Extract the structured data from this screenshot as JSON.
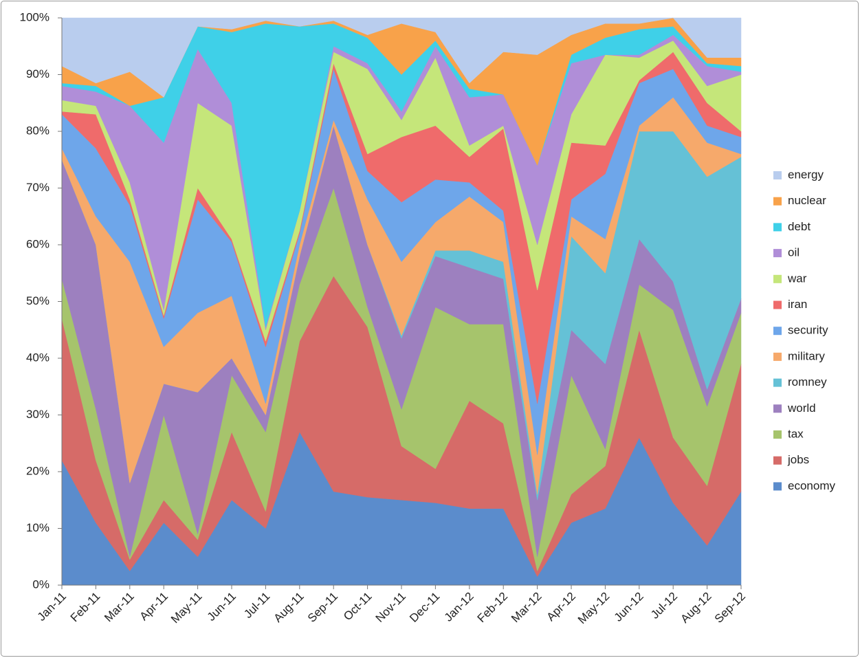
{
  "chart_data": {
    "type": "stacked-area",
    "categories": [
      "Jan-11",
      "Feb-11",
      "Mar-11",
      "Apr-11",
      "May-11",
      "Jun-11",
      "Jul-11",
      "Aug-11",
      "Sep-11",
      "Oct-11",
      "Nov-11",
      "Dec-11",
      "Jan-12",
      "Feb-12",
      "Mar-12",
      "Apr-12",
      "May-12",
      "Jun-12",
      "Jul-12",
      "Aug-12",
      "Sep-12"
    ],
    "series": [
      {
        "name": "economy",
        "color": "#5b8ccc",
        "values": [
          22,
          11,
          2.5,
          11,
          5,
          15,
          10,
          27,
          16.5,
          15.5,
          15,
          14.5,
          13.5,
          13.5,
          1.5,
          11,
          13.5,
          26,
          14.5,
          7,
          16.5
        ]
      },
      {
        "name": "jobs",
        "color": "#d66b68",
        "values": [
          25,
          11,
          2,
          4,
          3,
          12,
          3,
          16,
          38,
          30,
          9.5,
          6,
          19,
          15,
          1,
          5,
          7.5,
          19,
          11.5,
          10.5,
          22.5
        ]
      },
      {
        "name": "tax",
        "color": "#a6c46c",
        "values": [
          7,
          9,
          0.5,
          15,
          1,
          10,
          14,
          10,
          15.5,
          3.5,
          6.5,
          28.5,
          13.5,
          17.5,
          2.5,
          21,
          3,
          8,
          22.5,
          14,
          9
        ]
      },
      {
        "name": "world",
        "color": "#9d80bf",
        "values": [
          21,
          29,
          13,
          5.5,
          25,
          3,
          3,
          5,
          11,
          11,
          12.5,
          9,
          10,
          8,
          10,
          8,
          15,
          8,
          5,
          3,
          2.5
        ]
      },
      {
        "name": "romney",
        "color": "#65c1d6",
        "values": [
          0,
          0,
          0,
          0,
          0,
          0,
          0,
          0,
          0,
          0,
          0.5,
          1,
          3,
          3,
          1,
          16.5,
          16,
          19,
          26.5,
          37.5,
          25
        ]
      },
      {
        "name": "military",
        "color": "#f6a96b",
        "values": [
          2,
          5,
          39,
          6.5,
          14,
          11,
          2,
          2,
          1,
          8,
          13,
          5,
          9.5,
          7,
          7,
          3.5,
          6,
          1,
          6,
          6,
          0.5
        ]
      },
      {
        "name": "security",
        "color": "#6ea6ea",
        "values": [
          6,
          12,
          10,
          5,
          20,
          9.5,
          10,
          2,
          9,
          5,
          10.5,
          7.5,
          2.5,
          2,
          9,
          3,
          11.5,
          7.5,
          5,
          3,
          3
        ]
      },
      {
        "name": "iran",
        "color": "#ef6b6b",
        "values": [
          0.5,
          6,
          1,
          0.5,
          2,
          0.5,
          1,
          0.5,
          1,
          3,
          11.5,
          9.5,
          4.5,
          14.5,
          20,
          10,
          5,
          0.5,
          3,
          4,
          1
        ]
      },
      {
        "name": "war",
        "color": "#c5e67a",
        "values": [
          2,
          1.5,
          3,
          1,
          15,
          20,
          2,
          3.5,
          2,
          15,
          3,
          12,
          2,
          0.5,
          8,
          5,
          16,
          4,
          2,
          3,
          10
        ]
      },
      {
        "name": "oil",
        "color": "#b08ed8",
        "values": [
          2.5,
          2.5,
          13.5,
          29.5,
          9.5,
          4,
          0.5,
          0,
          1,
          1,
          1.5,
          2,
          8.5,
          5.5,
          14,
          9,
          0,
          0.5,
          1,
          3.5,
          0.5
        ]
      },
      {
        "name": "debt",
        "color": "#3fd0e8",
        "values": [
          0.5,
          1,
          0,
          8,
          4,
          12.5,
          53.5,
          32.5,
          4,
          4.5,
          6.5,
          1,
          1.5,
          0,
          0,
          1.5,
          3,
          4.5,
          1.5,
          0.5,
          1
        ]
      },
      {
        "name": "nuclear",
        "color": "#f8a24a",
        "values": [
          3,
          0.5,
          6,
          0,
          0,
          0.5,
          0.5,
          0,
          0.5,
          0.5,
          9,
          1.5,
          1,
          7.5,
          19.5,
          3.5,
          2.5,
          1,
          1.5,
          1,
          1.5
        ]
      },
      {
        "name": "energy",
        "color": "#b9cdee",
        "values": [
          8.5,
          11.5,
          9.5,
          14,
          1.5,
          2,
          0.5,
          1.5,
          0.5,
          3,
          1,
          2.5,
          11.5,
          6,
          6.5,
          3,
          1,
          1,
          0,
          7,
          7
        ]
      }
    ],
    "ylim": [
      0,
      100
    ],
    "yticks": [
      {
        "value": 0,
        "label": "0%"
      },
      {
        "value": 10,
        "label": "10%"
      },
      {
        "value": 20,
        "label": "20%"
      },
      {
        "value": 30,
        "label": "30%"
      },
      {
        "value": 40,
        "label": "40%"
      },
      {
        "value": 50,
        "label": "50%"
      },
      {
        "value": 60,
        "label": "60%"
      },
      {
        "value": 70,
        "label": "70%"
      },
      {
        "value": 80,
        "label": "80%"
      },
      {
        "value": 90,
        "label": "90%"
      },
      {
        "value": 100,
        "label": "100%"
      }
    ],
    "legend": "right"
  }
}
